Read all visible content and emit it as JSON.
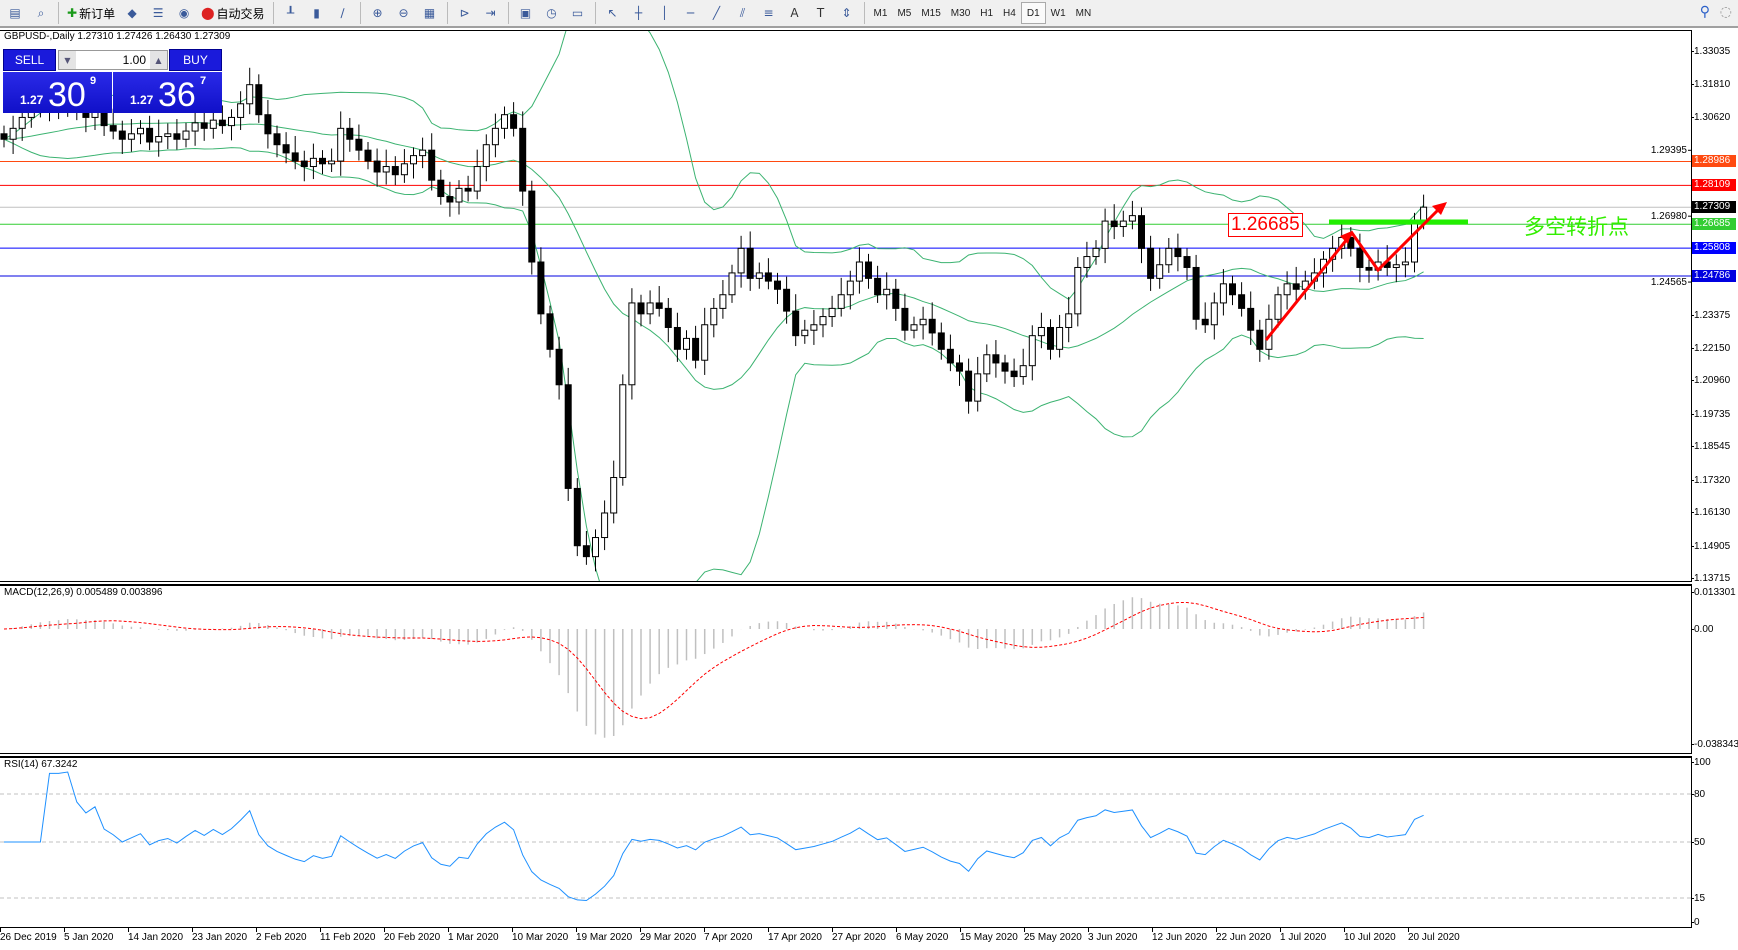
{
  "toolbar": {
    "items": [
      {
        "icon": "chart-window-icon"
      },
      {
        "icon": "zoom-window-icon"
      },
      {
        "icon": "new-order-icon",
        "label": "新订单"
      },
      {
        "icon": "metaeditor-icon"
      },
      {
        "icon": "navigator-icon"
      },
      {
        "icon": "signals-icon"
      },
      {
        "icon": "auto-trading-icon",
        "label": "自动交易"
      },
      {
        "icon": "bar-chart-icon"
      },
      {
        "icon": "candlestick-icon"
      },
      {
        "icon": "line-chart-icon"
      },
      {
        "icon": "zoom-in-icon"
      },
      {
        "icon": "zoom-out-icon"
      },
      {
        "icon": "tile-windows-icon"
      },
      {
        "icon": "chart-shift-icon"
      },
      {
        "icon": "autoscroll-icon"
      },
      {
        "icon": "indicators-icon"
      },
      {
        "icon": "periods-icon"
      },
      {
        "icon": "templates-icon"
      },
      {
        "icon": "cursor-icon"
      },
      {
        "icon": "crosshair-icon"
      },
      {
        "icon": "vertical-line-icon"
      },
      {
        "icon": "horizontal-line-icon"
      },
      {
        "icon": "trendline-icon"
      },
      {
        "icon": "equidistant-channel-icon"
      },
      {
        "icon": "fibonacci-icon"
      },
      {
        "icon": "text-icon",
        "label": "A"
      },
      {
        "icon": "text-label-icon",
        "label": "T"
      },
      {
        "icon": "arrows-icon"
      }
    ],
    "timeframes": [
      "M1",
      "M5",
      "M15",
      "M30",
      "H1",
      "H4",
      "D1",
      "W1",
      "MN"
    ],
    "selected_timeframe": "D1"
  },
  "chart": {
    "symbol_line": "GBPUSD-,Daily  1.27310 1.27426 1.26430 1.27309",
    "trade": {
      "sell_label": "SELL",
      "buy_label": "BUY",
      "lot": "1.00",
      "sell_big": "1.27",
      "sell_pips": "30",
      "sell_frac": "9",
      "buy_big": "1.27",
      "buy_pips": "36",
      "buy_frac": "7"
    },
    "price_ticks": [
      "1.33035",
      "1.31810",
      "1.30620",
      "1.29395",
      "1.26980",
      "1.24565",
      "1.23375",
      "1.22150",
      "1.20960",
      "1.19735",
      "1.18545",
      "1.17320",
      "1.16130",
      "1.14905",
      "1.13715"
    ],
    "levels": [
      {
        "price": "1.28986",
        "color": "#ff4a10"
      },
      {
        "price": "1.28109",
        "color": "#ff0000"
      },
      {
        "price": "1.27309",
        "color": "#000000",
        "line": "#c0c0c0"
      },
      {
        "price": "1.26685",
        "color": "#32cd32"
      },
      {
        "price": "1.25808",
        "color": "#0000ff"
      },
      {
        "price": "1.24786",
        "color": "#0000e0"
      }
    ],
    "annotation_price": "1.26685",
    "annotation_text": "多空转折点",
    "closes": [
      1.298,
      1.302,
      1.306,
      1.309,
      1.311,
      1.31,
      1.31,
      1.312,
      1.308,
      1.306,
      1.309,
      1.303,
      1.301,
      1.298,
      1.3,
      1.302,
      1.297,
      1.299,
      1.3,
      1.298,
      1.301,
      1.304,
      1.302,
      1.305,
      1.303,
      1.306,
      1.311,
      1.318,
      1.307,
      1.3,
      1.296,
      1.293,
      1.29,
      1.288,
      1.291,
      1.289,
      1.29,
      1.302,
      1.298,
      1.294,
      1.29,
      1.286,
      1.288,
      1.285,
      1.289,
      1.292,
      1.294,
      1.283,
      1.277,
      1.275,
      1.28,
      1.279,
      1.288,
      1.296,
      1.302,
      1.307,
      1.302,
      1.279,
      1.253,
      1.234,
      1.221,
      1.208,
      1.17,
      1.149,
      1.145,
      1.152,
      1.161,
      1.174,
      1.208,
      1.238,
      1.234,
      1.238,
      1.236,
      1.229,
      1.221,
      1.225,
      1.217,
      1.23,
      1.236,
      1.241,
      1.249,
      1.258,
      1.247,
      1.249,
      1.246,
      1.243,
      1.235,
      1.226,
      1.228,
      1.23,
      1.233,
      1.236,
      1.241,
      1.246,
      1.253,
      1.247,
      1.241,
      1.243,
      1.236,
      1.228,
      1.23,
      1.232,
      1.227,
      1.221,
      1.216,
      1.213,
      1.202,
      1.212,
      1.219,
      1.216,
      1.213,
      1.211,
      1.215,
      1.226,
      1.229,
      1.221,
      1.229,
      1.234,
      1.251,
      1.255,
      1.258,
      1.268,
      1.266,
      1.268,
      1.27,
      1.258,
      1.247,
      1.252,
      1.258,
      1.255,
      1.251,
      1.232,
      1.23,
      1.238,
      1.245,
      1.241,
      1.236,
      1.228,
      1.221,
      1.232,
      1.241,
      1.245,
      1.243,
      1.246,
      1.249,
      1.254,
      1.258,
      1.262,
      1.258,
      1.251,
      1.25,
      1.253,
      1.251,
      1.252,
      1.253,
      1.268,
      1.2731
    ],
    "bands_color": "#3cb371"
  },
  "macd": {
    "title": "MACD(12,26,9) 0.005489 0.003896",
    "ticks": [
      "0.013301",
      "0.00",
      "-0.038343"
    ],
    "hist_color": "#c0c0c0",
    "signal_color": "#ff0000"
  },
  "rsi": {
    "title": "RSI(14) 67.3242",
    "ticks": [
      "100",
      "80",
      "50",
      "15",
      "0"
    ],
    "line_color": "#1e90ff"
  },
  "dates": [
    "26 Dec 2019",
    "5 Jan 2020",
    "14 Jan 2020",
    "23 Jan 2020",
    "2 Feb 2020",
    "11 Feb 2020",
    "20 Feb 2020",
    "1 Mar 2020",
    "10 Mar 2020",
    "19 Mar 2020",
    "29 Mar 2020",
    "7 Apr 2020",
    "17 Apr 2020",
    "27 Apr 2020",
    "6 May 2020",
    "15 May 2020",
    "25 May 2020",
    "3 Jun 2020",
    "12 Jun 2020",
    "22 Jun 2020",
    "1 Jul 2020",
    "10 Jul 2020",
    "20 Jul 2020"
  ]
}
